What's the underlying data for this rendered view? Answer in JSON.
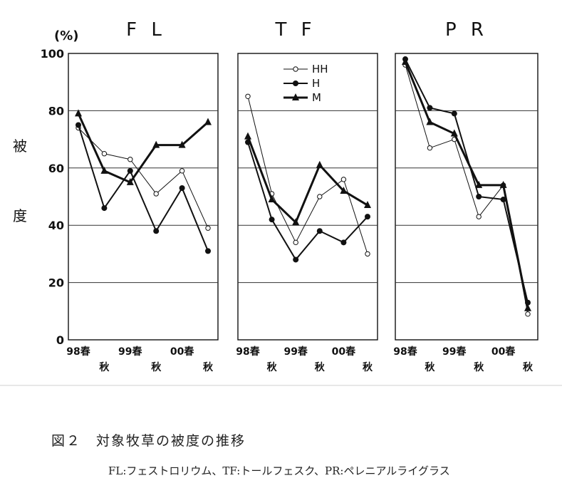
{
  "figure": {
    "unit_label": "(%)",
    "ylabel_chars": [
      "被",
      "度"
    ],
    "caption_title": "図２　対象牧草の被度の推移",
    "caption_note": "FL:フェストロリウム、TF:トールフェスク、PR:ペレニアルライグラス"
  },
  "chart_data": [
    {
      "type": "line",
      "title": "F L",
      "x": [
        "98春",
        "秋",
        "99春",
        "秋",
        "00春",
        "秋"
      ],
      "ylim": [
        0,
        100
      ],
      "yticks": [
        0,
        20,
        40,
        60,
        80,
        100
      ],
      "grid": true,
      "series": [
        {
          "name": "HH",
          "values": [
            74,
            65,
            63,
            51,
            59,
            39
          ]
        },
        {
          "name": "H",
          "values": [
            75,
            46,
            59,
            38,
            53,
            31
          ]
        },
        {
          "name": "M",
          "values": [
            79,
            59,
            55,
            68,
            68,
            76
          ]
        }
      ]
    },
    {
      "type": "line",
      "title": "T F",
      "x": [
        "98春",
        "秋",
        "99春",
        "秋",
        "00春",
        "秋"
      ],
      "ylim": [
        0,
        100
      ],
      "grid": true,
      "legend": "top-center",
      "series": [
        {
          "name": "HH",
          "values": [
            85,
            51,
            34,
            50,
            56,
            30
          ]
        },
        {
          "name": "H",
          "values": [
            69,
            42,
            28,
            38,
            34,
            43
          ]
        },
        {
          "name": "M",
          "values": [
            71,
            49,
            41,
            61,
            52,
            47
          ]
        }
      ]
    },
    {
      "type": "line",
      "title": "P R",
      "x": [
        "98春",
        "秋",
        "99春",
        "秋",
        "00春",
        "秋"
      ],
      "ylim": [
        0,
        100
      ],
      "grid": true,
      "series": [
        {
          "name": "HH",
          "values": [
            96,
            67,
            70,
            43,
            54,
            9
          ]
        },
        {
          "name": "H",
          "values": [
            98,
            81,
            79,
            50,
            49,
            13
          ]
        },
        {
          "name": "M",
          "values": [
            97,
            76,
            72,
            54,
            54,
            11
          ]
        }
      ]
    }
  ],
  "colors": {
    "line": "#111111",
    "grid": "#222222",
    "marker_open_fill": "#ffffff"
  }
}
